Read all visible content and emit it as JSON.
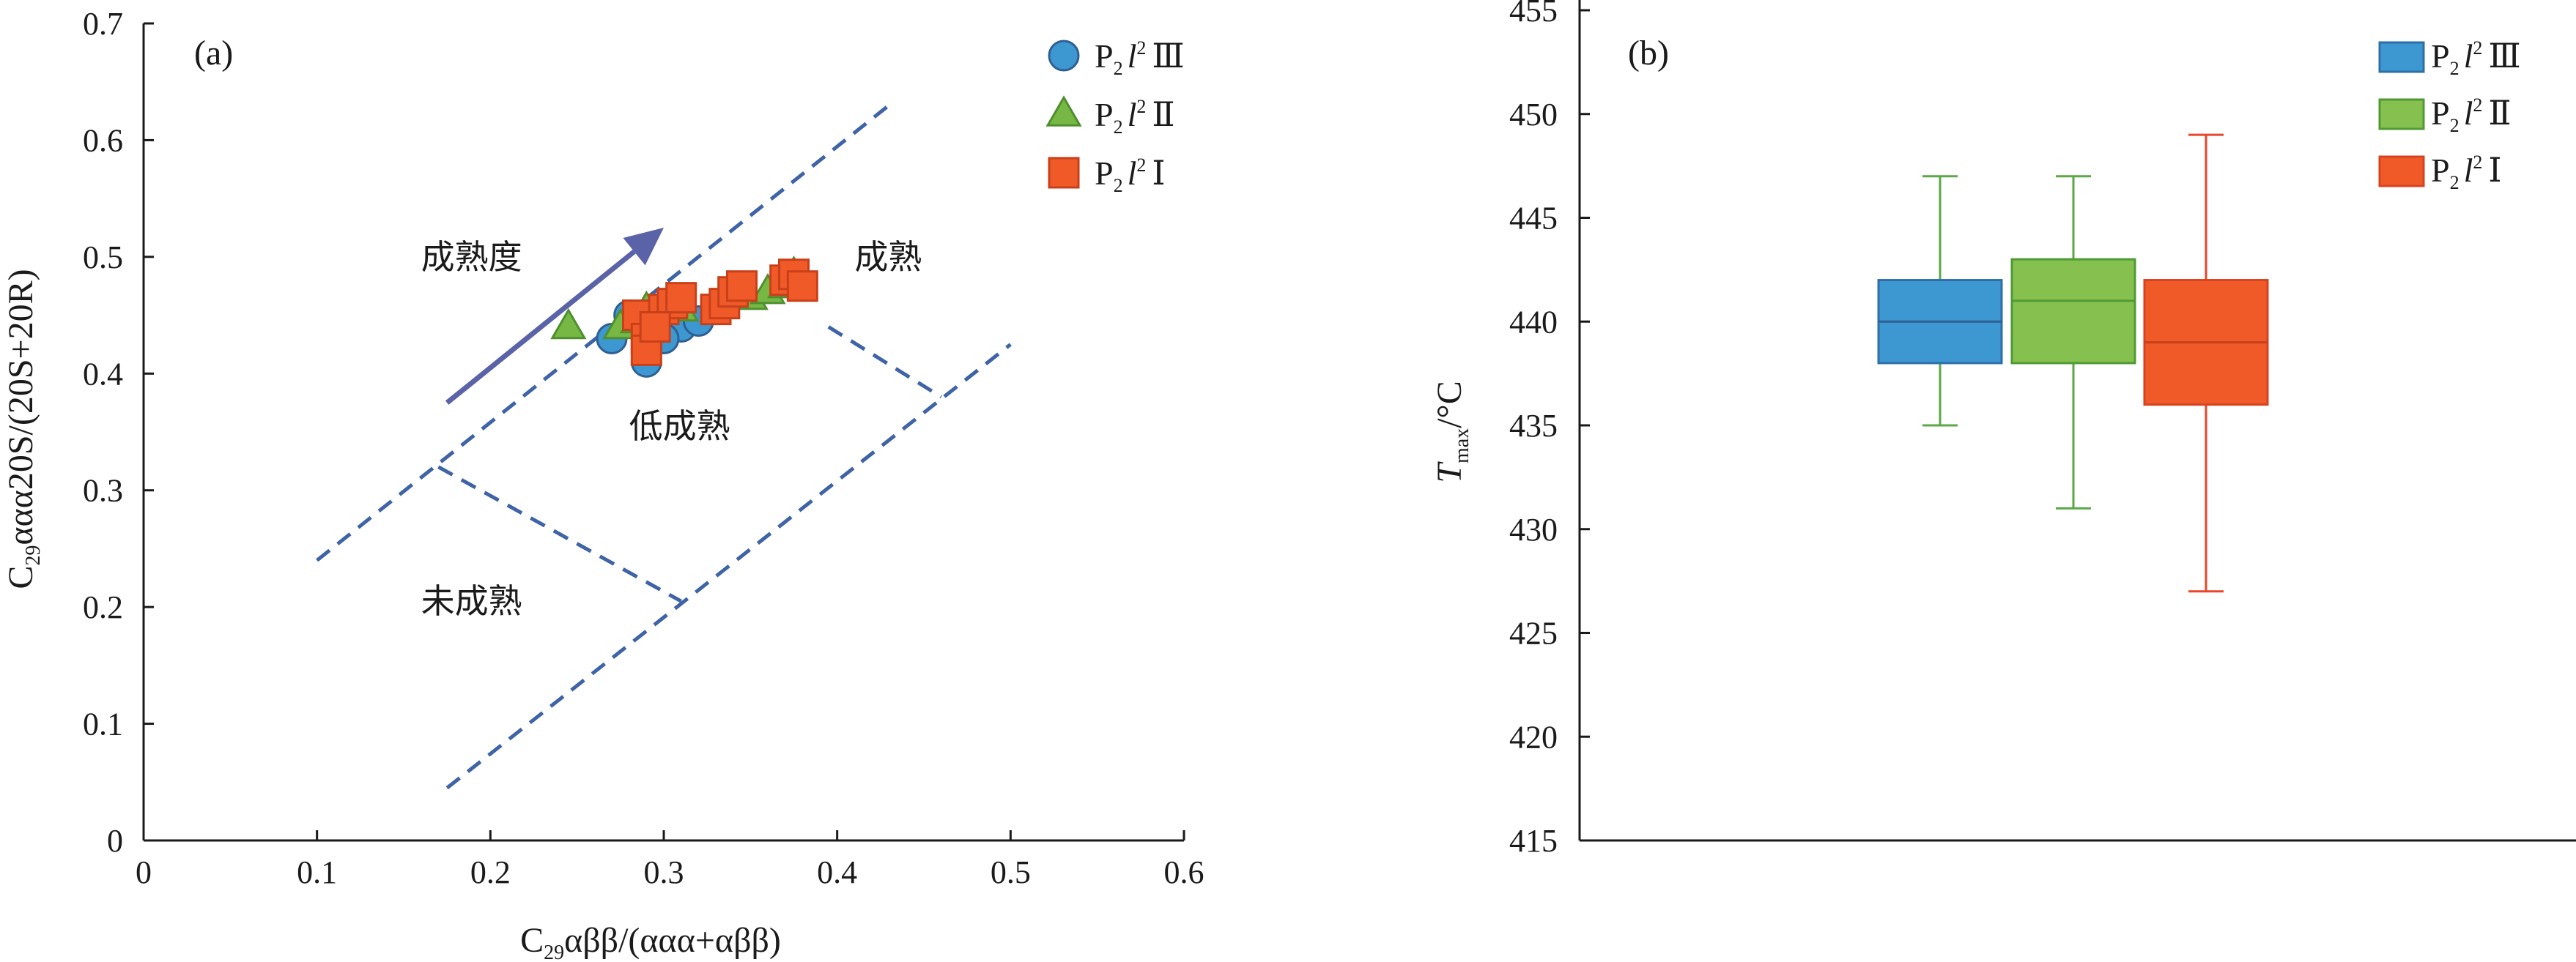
{
  "chart_data": [
    {
      "panel_label": "(a)",
      "type": "scatter",
      "xlabel": "C29αββ/(ααα+αββ)",
      "ylabel": "C29ααα20S/(20S+20R)",
      "xlim": [
        0,
        0.6
      ],
      "ylim": [
        0,
        0.7
      ],
      "xticks": [
        "0",
        "0.1",
        "0.2",
        "0.3",
        "0.4",
        "0.5",
        "0.6"
      ],
      "yticks": [
        "0",
        "0.1",
        "0.2",
        "0.3",
        "0.4",
        "0.5",
        "0.6",
        "0.7"
      ],
      "grid": false,
      "legend_position": "top-right",
      "annotations": {
        "maturity_arrow": "成熟度",
        "zone_mature": "成熟",
        "zone_low_mature": "低成熟",
        "zone_immature": "未成熟"
      },
      "boundary_lines": [
        {
          "x": [
            0.1,
            0.43
          ],
          "y": [
            0.24,
            0.63
          ]
        },
        {
          "x": [
            0.175,
            0.5
          ],
          "y": [
            0.045,
            0.425
          ]
        },
        {
          "x": [
            0.17,
            0.31
          ],
          "y": [
            0.32,
            0.205
          ]
        },
        {
          "x": [
            0.395,
            0.46
          ],
          "y": [
            0.44,
            0.38
          ]
        }
      ],
      "arrow": {
        "x": [
          0.175,
          0.3
        ],
        "y": [
          0.375,
          0.525
        ]
      },
      "series": [
        {
          "name": "P2l2 Ⅲ",
          "marker": "circle",
          "color": "#3d97d0",
          "x": [
            0.27,
            0.28,
            0.29,
            0.3,
            0.31,
            0.3,
            0.32,
            0.29
          ],
          "y": [
            0.43,
            0.45,
            0.44,
            0.45,
            0.44,
            0.43,
            0.445,
            0.41
          ]
        },
        {
          "name": "P2l2 Ⅱ",
          "marker": "triangle",
          "color": "#76b843",
          "x": [
            0.245,
            0.275,
            0.29,
            0.305,
            0.31,
            0.35,
            0.36,
            0.375,
            0.37,
            0.285
          ],
          "y": [
            0.44,
            0.44,
            0.455,
            0.46,
            0.455,
            0.465,
            0.47,
            0.485,
            0.475,
            0.445
          ]
        },
        {
          "name": "P2l2 Ⅰ",
          "marker": "square",
          "color": "#f05a28",
          "x": [
            0.285,
            0.29,
            0.3,
            0.305,
            0.31,
            0.33,
            0.335,
            0.34,
            0.345,
            0.37,
            0.375,
            0.38,
            0.29,
            0.295
          ],
          "y": [
            0.45,
            0.43,
            0.455,
            0.46,
            0.465,
            0.455,
            0.46,
            0.47,
            0.475,
            0.48,
            0.485,
            0.475,
            0.42,
            0.44
          ]
        }
      ]
    },
    {
      "panel_label": "(b)",
      "type": "box",
      "ylabel_main": "T",
      "ylabel_sub": "max",
      "ylabel_unit": "/°C",
      "ylim": [
        415,
        455
      ],
      "yticks": [
        "415",
        "420",
        "425",
        "430",
        "435",
        "440",
        "445",
        "450",
        "455"
      ],
      "grid": false,
      "legend_position": "top-right",
      "boxes": [
        {
          "name": "P2l2 Ⅲ",
          "color": "#3d97d0",
          "whisker_color": "#5aa846",
          "min": 435,
          "q1": 438,
          "median": 440,
          "q3": 442,
          "max": 447
        },
        {
          "name": "P2l2 Ⅱ",
          "color": "#86c04f",
          "whisker_color": "#5aa846",
          "min": 431,
          "q1": 438,
          "median": 441,
          "q3": 443,
          "max": 447
        },
        {
          "name": "P2l2 Ⅰ",
          "color": "#f05a28",
          "whisker_color": "#e8452a",
          "min": 427,
          "q1": 436,
          "median": 439,
          "q3": 442,
          "max": 449
        }
      ]
    }
  ],
  "legend_a": [
    {
      "base": "P",
      "sub": "2",
      "ital": "l",
      "sup": "2",
      "roman": "Ⅲ"
    },
    {
      "base": "P",
      "sub": "2",
      "ital": "l",
      "sup": "2",
      "roman": "Ⅱ"
    },
    {
      "base": "P",
      "sub": "2",
      "ital": "l",
      "sup": "2",
      "roman": "Ⅰ"
    }
  ],
  "legend_b": [
    {
      "base": "P",
      "sub": "2",
      "ital": "l",
      "sup": "2",
      "roman": "Ⅲ"
    },
    {
      "base": "P",
      "sub": "2",
      "ital": "l",
      "sup": "2",
      "roman": "Ⅱ"
    },
    {
      "base": "P",
      "sub": "2",
      "ital": "l",
      "sup": "2",
      "roman": "Ⅰ"
    }
  ],
  "axis_a": {
    "x_prefix": "C",
    "x_sub": "29",
    "x_rest": "αββ/(ααα+αββ)",
    "y_prefix": "C",
    "y_sub": "29",
    "y_rest": "ααα20S/(20S+20R)"
  }
}
